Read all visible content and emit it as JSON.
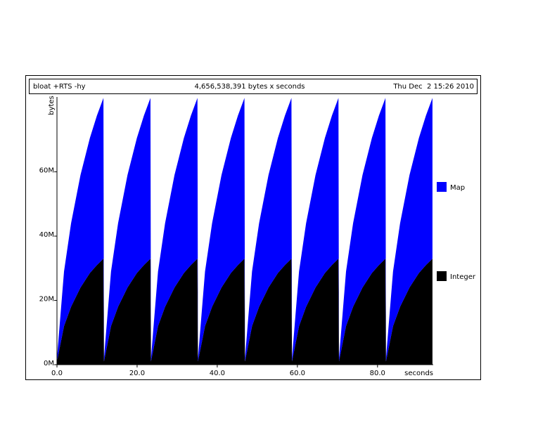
{
  "chart_data": {
    "type": "stacked-area",
    "header": {
      "program": "bloat +RTS -hy",
      "total": "4,656,538,391 bytes x seconds",
      "date": "Thu Dec  2 15:26 2010"
    },
    "xlabel": "seconds",
    "ylabel": "bytes",
    "x": [
      0,
      1.76,
      3.52,
      5.87,
      8.21,
      9.97,
      11.6,
      11.73,
      13.49,
      15.25,
      17.6,
      19.94,
      21.7,
      23.33,
      23.46,
      25.22,
      26.98,
      29.33,
      31.67,
      33.43,
      35.06,
      35.19,
      36.95,
      38.71,
      41.06,
      43.4,
      45.16,
      46.79,
      46.92,
      48.68,
      50.44,
      52.79,
      55.13,
      56.89,
      58.52,
      58.65,
      60.41,
      62.17,
      64.52,
      66.86,
      68.62,
      70.25,
      70.38,
      72.14,
      73.9,
      76.25,
      78.59,
      80.35,
      81.98,
      82.11,
      83.87,
      85.63,
      87.98,
      90.32,
      92.08,
      93.71
    ],
    "series": [
      {
        "name": "Integer",
        "color": "#000000",
        "values": [
          1000000,
          12000000,
          18000000,
          24000000,
          28500000,
          31000000,
          33000000,
          1000000,
          12000000,
          18000000,
          24000000,
          28500000,
          31000000,
          33000000,
          1000000,
          12000000,
          18000000,
          24000000,
          28500000,
          31000000,
          33000000,
          1000000,
          12000000,
          18000000,
          24000000,
          28500000,
          31000000,
          33000000,
          1000000,
          12000000,
          18000000,
          24000000,
          28500000,
          31000000,
          33000000,
          1000000,
          12000000,
          18000000,
          24000000,
          28500000,
          31000000,
          33000000,
          1000000,
          12000000,
          18000000,
          24000000,
          28500000,
          31000000,
          33000000,
          1000000,
          12000000,
          18000000,
          24000000,
          28500000,
          31000000,
          33000000
        ]
      },
      {
        "name": "Map",
        "color": "#0000ff",
        "values": [
          1000000,
          17000000,
          26000000,
          35000000,
          42000000,
          46500000,
          50000000,
          1000000,
          17000000,
          26000000,
          35000000,
          42000000,
          46500000,
          50000000,
          1000000,
          17000000,
          26000000,
          35000000,
          42000000,
          46500000,
          50000000,
          1000000,
          17000000,
          26000000,
          35000000,
          42000000,
          46500000,
          50000000,
          1000000,
          17000000,
          26000000,
          35000000,
          42000000,
          46500000,
          50000000,
          1000000,
          17000000,
          26000000,
          35000000,
          42000000,
          46500000,
          50000000,
          1000000,
          17000000,
          26000000,
          35000000,
          42000000,
          46500000,
          50000000,
          1000000,
          17000000,
          26000000,
          35000000,
          42000000,
          46500000,
          50000000
        ]
      }
    ],
    "xlim": [
      0,
      93.9
    ],
    "xticks": [
      {
        "value": 0,
        "label": "0.0"
      },
      {
        "value": 20,
        "label": "20.0"
      },
      {
        "value": 40,
        "label": "40.0"
      },
      {
        "value": 60,
        "label": "60.0"
      },
      {
        "value": 80,
        "label": "80.0"
      }
    ],
    "ylim": [
      0,
      83300000
    ],
    "yticks": [
      {
        "value": 0,
        "label": "0M"
      },
      {
        "value": 20000000,
        "label": "20M"
      },
      {
        "value": 40000000,
        "label": "40M"
      },
      {
        "value": 60000000,
        "label": "60M"
      }
    ]
  }
}
